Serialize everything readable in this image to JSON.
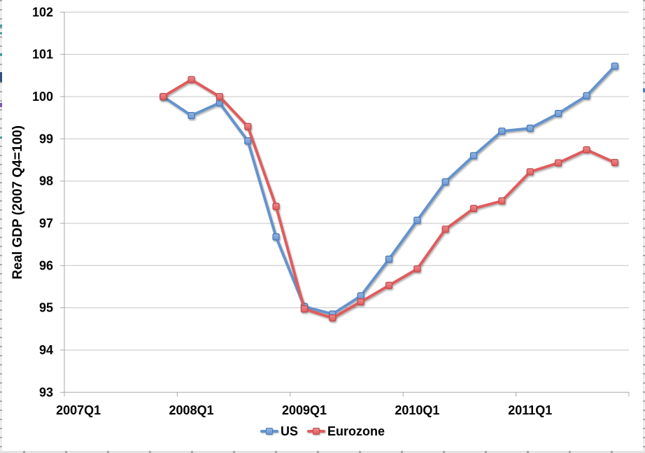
{
  "chart_data": {
    "type": "line",
    "title": "",
    "xlabel": "",
    "ylabel": "Real GDP (2007 Q4=100)",
    "ylim": [
      93,
      102
    ],
    "y_ticks": [
      93,
      94,
      95,
      96,
      97,
      98,
      99,
      100,
      101,
      102
    ],
    "grid": "horizontal gridlines at every integer",
    "legend_position": "bottom-center",
    "categories": [
      "2007Q1",
      "2007Q2",
      "2007Q3",
      "2007Q4",
      "2008Q1",
      "2008Q2",
      "2008Q3",
      "2008Q4",
      "2009Q1",
      "2009Q2",
      "2009Q3",
      "2009Q4",
      "2010Q1",
      "2010Q2",
      "2010Q3",
      "2010Q4",
      "2011Q1",
      "2011Q2",
      "2011Q3",
      "2011Q4"
    ],
    "x_tick_labels": [
      {
        "label": "2007Q1",
        "category_index": 0
      },
      {
        "label": "2008Q1",
        "category_index": 4
      },
      {
        "label": "2009Q1",
        "category_index": 8
      },
      {
        "label": "2010Q1",
        "category_index": 12
      },
      {
        "label": "2011Q1",
        "category_index": 16
      }
    ],
    "series": [
      {
        "name": "US",
        "line_color": "#6593cb",
        "marker_fill_top": "#93b6e2",
        "marker_fill_bottom": "#6b97d0",
        "marker_edge": "#4a79b8",
        "values": [
          null,
          null,
          null,
          100,
          99.55,
          99.85,
          98.95,
          96.68,
          95.03,
          94.85,
          95.28,
          96.15,
          97.07,
          97.98,
          98.6,
          99.18,
          99.25,
          99.6,
          100.02,
          100.72
        ]
      },
      {
        "name": "Eurozone",
        "line_color": "#df5b5d",
        "marker_fill_top": "#f08a8c",
        "marker_fill_bottom": "#e05a5c",
        "marker_edge": "#bf4e4f",
        "values": [
          null,
          null,
          null,
          100,
          100.4,
          100.0,
          99.29,
          97.4,
          94.97,
          94.76,
          95.14,
          95.53,
          95.92,
          96.86,
          97.35,
          97.53,
          98.22,
          98.43,
          98.74,
          98.44
        ]
      }
    ]
  }
}
